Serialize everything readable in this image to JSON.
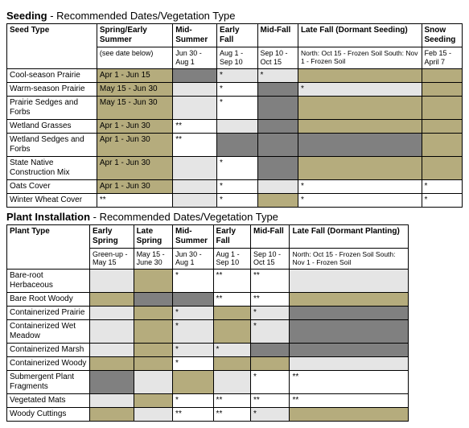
{
  "colors": {
    "tan": "#b5ac7d",
    "lightgrey": "#e5e5e5",
    "darkgrey": "#808080",
    "white": "#ffffff"
  },
  "seeding": {
    "title_main": "Seeding",
    "title_sub": " - Recommended Dates/Vegetation Type",
    "headers": {
      "rowhdr": "Seed Type",
      "cols": [
        "Spring/Early Summer",
        "Mid-Summer",
        "Early Fall",
        "Mid-Fall",
        "Late Fall (Dormant Seeding)",
        "Snow Seeding"
      ],
      "sub": [
        "(see date below)",
        "Jun 30 - Aug 1",
        "Aug 1 - Sep 10",
        "Sep 10 - Oct 15",
        "North: Oct 15 - Frozen Soil\nSouth: Nov 1 - Frozen Soil",
        "Feb 15 - April 7"
      ]
    },
    "rows": [
      {
        "label": "Cool-season Prairie",
        "a": {
          "t": "Apr 1 - Jun 15",
          "c": "tan"
        },
        "b": {
          "t": "",
          "c": "darkgrey"
        },
        "c": {
          "t": "*",
          "c": "lightgrey"
        },
        "d": {
          "t": "*",
          "c": "lightgrey"
        },
        "e": {
          "t": "",
          "c": "tan"
        },
        "f": {
          "t": "",
          "c": "tan"
        }
      },
      {
        "label": "Warm-season Prairie",
        "a": {
          "t": "May 15 - Jun 30",
          "c": "tan"
        },
        "b": {
          "t": "",
          "c": "lightgrey"
        },
        "c": {
          "t": "*",
          "c": "white"
        },
        "d": {
          "t": "",
          "c": "darkgrey"
        },
        "e": {
          "t": "*",
          "c": "lightgrey"
        },
        "f": {
          "t": "",
          "c": "tan"
        }
      },
      {
        "label": "Prairie Sedges and Forbs",
        "a": {
          "t": "May 15 - Jun 30",
          "c": "tan"
        },
        "b": {
          "t": "",
          "c": "lightgrey"
        },
        "c": {
          "t": "*",
          "c": "white"
        },
        "d": {
          "t": "",
          "c": "darkgrey"
        },
        "e": {
          "t": "",
          "c": "tan"
        },
        "f": {
          "t": "",
          "c": "tan"
        }
      },
      {
        "label": "Wetland Grasses",
        "a": {
          "t": "Apr 1 - Jun 30",
          "c": "tan"
        },
        "b": {
          "t": "**",
          "c": "white"
        },
        "c": {
          "t": "",
          "c": "lightgrey"
        },
        "d": {
          "t": "",
          "c": "darkgrey"
        },
        "e": {
          "t": "",
          "c": "tan"
        },
        "f": {
          "t": "",
          "c": "tan"
        }
      },
      {
        "label": "Wetland Sedges and Forbs",
        "a": {
          "t": "Apr 1 - Jun 30",
          "c": "tan"
        },
        "b": {
          "t": "**",
          "c": "white"
        },
        "c": {
          "t": "",
          "c": "darkgrey"
        },
        "d": {
          "t": "",
          "c": "darkgrey"
        },
        "e": {
          "t": "",
          "c": "darkgrey"
        },
        "f": {
          "t": "",
          "c": "tan"
        }
      },
      {
        "label": "State Native Construction Mix",
        "a": {
          "t": "Apr 1 - Jun 30",
          "c": "tan"
        },
        "b": {
          "t": "",
          "c": "lightgrey"
        },
        "c": {
          "t": "*",
          "c": "white"
        },
        "d": {
          "t": "",
          "c": "darkgrey"
        },
        "e": {
          "t": "",
          "c": "tan"
        },
        "f": {
          "t": "",
          "c": "tan"
        }
      },
      {
        "label": "Oats Cover",
        "a": {
          "t": "Apr 1 - Jun 30",
          "c": "tan"
        },
        "b": {
          "t": "",
          "c": "lightgrey"
        },
        "c": {
          "t": "*",
          "c": "white"
        },
        "d": {
          "t": "",
          "c": "lightgrey"
        },
        "e": {
          "t": "*",
          "c": "white"
        },
        "f": {
          "t": "*",
          "c": "white"
        }
      },
      {
        "label": "Winter Wheat Cover",
        "a": {
          "t": "**",
          "c": "white"
        },
        "b": {
          "t": "",
          "c": "lightgrey"
        },
        "c": {
          "t": "*",
          "c": "white"
        },
        "d": {
          "t": "",
          "c": "tan"
        },
        "e": {
          "t": "*",
          "c": "white"
        },
        "f": {
          "t": "*",
          "c": "white"
        }
      }
    ]
  },
  "planting": {
    "title_main": "Plant Installation",
    "title_sub": " - Recommended Dates/Vegetation Type",
    "headers": {
      "rowhdr": "Plant Type",
      "cols": [
        "Early Spring",
        "Late Spring",
        "Mid-Summer",
        "Early Fall",
        "Mid-Fall",
        "Late Fall (Dormant Planting)"
      ],
      "sub": [
        "Green-up - May 15",
        "May 15 - June 30",
        "Jun 30 - Aug 1",
        "Aug 1 - Sep 10",
        "Sep 10 - Oct 15",
        "North: Oct 15 - Frozen Soil\nSouth: Nov 1 - Frozen Soil"
      ]
    },
    "rows": [
      {
        "label": "Bare-root Herbaceous",
        "a": {
          "t": "",
          "c": "lightgrey"
        },
        "b": {
          "t": "",
          "c": "tan"
        },
        "c": {
          "t": "*",
          "c": "white"
        },
        "d": {
          "t": "**",
          "c": "white"
        },
        "e": {
          "t": "**",
          "c": "white"
        },
        "f": {
          "t": "",
          "c": "lightgrey"
        }
      },
      {
        "label": "Bare Root Woody",
        "a": {
          "t": "",
          "c": "tan"
        },
        "b": {
          "t": "",
          "c": "darkgrey"
        },
        "c": {
          "t": "",
          "c": "darkgrey"
        },
        "d": {
          "t": "**",
          "c": "white"
        },
        "e": {
          "t": "**",
          "c": "white"
        },
        "f": {
          "t": "",
          "c": "tan"
        }
      },
      {
        "label": "Containerized Prairie",
        "a": {
          "t": "",
          "c": "lightgrey"
        },
        "b": {
          "t": "",
          "c": "tan"
        },
        "c": {
          "t": "*",
          "c": "lightgrey"
        },
        "d": {
          "t": "",
          "c": "tan"
        },
        "e": {
          "t": "*",
          "c": "lightgrey"
        },
        "f": {
          "t": "",
          "c": "darkgrey"
        }
      },
      {
        "label": "Containerized Wet Meadow",
        "a": {
          "t": "",
          "c": "lightgrey"
        },
        "b": {
          "t": "",
          "c": "tan"
        },
        "c": {
          "t": "*",
          "c": "lightgrey"
        },
        "d": {
          "t": "",
          "c": "tan"
        },
        "e": {
          "t": "*",
          "c": "lightgrey"
        },
        "f": {
          "t": "",
          "c": "darkgrey"
        }
      },
      {
        "label": "Containerized Marsh",
        "a": {
          "t": "",
          "c": "lightgrey"
        },
        "b": {
          "t": "",
          "c": "tan"
        },
        "c": {
          "t": "*",
          "c": "lightgrey"
        },
        "d": {
          "t": "*",
          "c": "lightgrey"
        },
        "e": {
          "t": "",
          "c": "darkgrey"
        },
        "f": {
          "t": "",
          "c": "darkgrey"
        }
      },
      {
        "label": "Containerized Woody",
        "a": {
          "t": "",
          "c": "tan"
        },
        "b": {
          "t": "",
          "c": "tan"
        },
        "c": {
          "t": "*",
          "c": "white"
        },
        "d": {
          "t": "",
          "c": "tan"
        },
        "e": {
          "t": "",
          "c": "tan"
        },
        "f": {
          "t": "",
          "c": "lightgrey"
        }
      },
      {
        "label": "Submergent Plant Fragments",
        "a": {
          "t": "",
          "c": "darkgrey"
        },
        "b": {
          "t": "",
          "c": "lightgrey"
        },
        "c": {
          "t": "",
          "c": "tan"
        },
        "d": {
          "t": "",
          "c": "lightgrey"
        },
        "e": {
          "t": "*",
          "c": "white"
        },
        "f": {
          "t": "**",
          "c": "white"
        }
      },
      {
        "label": "Vegetated Mats",
        "a": {
          "t": "",
          "c": "lightgrey"
        },
        "b": {
          "t": "",
          "c": "tan"
        },
        "c": {
          "t": "*",
          "c": "white"
        },
        "d": {
          "t": "**",
          "c": "white"
        },
        "e": {
          "t": "**",
          "c": "white"
        },
        "f": {
          "t": "**",
          "c": "white"
        }
      },
      {
        "label": "Woody Cuttings",
        "a": {
          "t": "",
          "c": "tan"
        },
        "b": {
          "t": "",
          "c": "lightgrey"
        },
        "c": {
          "t": "**",
          "c": "white"
        },
        "d": {
          "t": "**",
          "c": "white"
        },
        "e": {
          "t": "*",
          "c": "lightgrey"
        },
        "f": {
          "t": "",
          "c": "tan"
        }
      }
    ]
  }
}
